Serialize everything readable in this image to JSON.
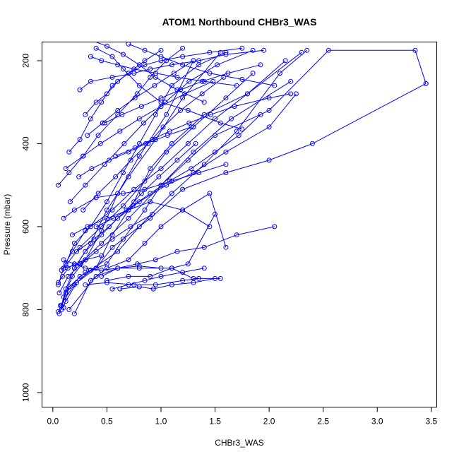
{
  "chart_data": {
    "type": "line",
    "title": "ATOM1 Northbound CHBr3_WAS",
    "xlabel": "CHBr3_WAS",
    "ylabel": "Pressure (mbar)",
    "xlim": [
      -0.1,
      3.55
    ],
    "ylim": [
      1035,
      155
    ],
    "y_axis_inverted": true,
    "grid": false,
    "legend": "none",
    "color": "#0000ff",
    "x_ticks": [
      0.0,
      0.5,
      1.0,
      1.5,
      2.0,
      2.5,
      3.0,
      3.5
    ],
    "x_tick_labels": [
      "0.0",
      "0.5",
      "1.0",
      "1.5",
      "2.0",
      "2.5",
      "3.0",
      "3.5"
    ],
    "y_ticks": [
      200,
      400,
      600,
      800,
      1000
    ],
    "y_tick_labels": [
      "200",
      "400",
      "600",
      "800",
      "1000"
    ],
    "series": [
      {
        "x": [
          0.05,
          0.08,
          0.12,
          0.2,
          0.35,
          0.5,
          0.7,
          0.95,
          1.2,
          1.55
        ],
        "y": [
          805,
          790,
          750,
          700,
          640,
          560,
          480,
          390,
          290,
          180
        ]
      },
      {
        "x": [
          0.08,
          0.1,
          0.18,
          0.3,
          0.45,
          0.6,
          0.8,
          1.05,
          1.3
        ],
        "y": [
          800,
          770,
          720,
          680,
          610,
          520,
          430,
          330,
          200
        ]
      },
      {
        "x": [
          0.06,
          0.12,
          0.25,
          0.4,
          0.55,
          0.75,
          0.9,
          1.1,
          1.4,
          1.8,
          2.3
        ],
        "y": [
          810,
          760,
          720,
          700,
          620,
          540,
          460,
          400,
          330,
          280,
          180
        ]
      },
      {
        "x": [
          0.1,
          0.15,
          0.3,
          0.5,
          0.65,
          0.85,
          1.0,
          1.25,
          1.5,
          2.0,
          2.55,
          3.35,
          3.45
        ],
        "y": [
          795,
          745,
          710,
          690,
          630,
          560,
          500,
          440,
          380,
          320,
          175,
          175,
          255
        ]
      },
      {
        "x": [
          0.07,
          0.2,
          0.35,
          0.6,
          0.8,
          1.1,
          1.4,
          1.7,
          2.1,
          2.35
        ],
        "y": [
          790,
          740,
          705,
          660,
          600,
          520,
          450,
          370,
          230,
          175
        ]
      },
      {
        "x": [
          0.12,
          0.22,
          0.4,
          0.55,
          0.9,
          1.2,
          1.6,
          2.0,
          2.4,
          3.45
        ],
        "y": [
          780,
          735,
          700,
          650,
          580,
          510,
          470,
          440,
          400,
          255
        ]
      },
      {
        "x": [
          0.05,
          0.1,
          0.25,
          0.45,
          0.7,
          1.0,
          1.3,
          1.65,
          2.2
        ],
        "y": [
          740,
          700,
          690,
          640,
          580,
          500,
          420,
          340,
          250
        ]
      },
      {
        "x": [
          0.2,
          0.35,
          0.5,
          0.7,
          0.85,
          1.0,
          1.2,
          1.45,
          1.6
        ],
        "y": [
          810,
          730,
          700,
          680,
          640,
          600,
          560,
          520,
          650
        ]
      },
      {
        "x": [
          0.15,
          0.4,
          0.6,
          0.8,
          1.1,
          1.3,
          1.55
        ],
        "y": [
          800,
          720,
          700,
          700,
          700,
          725,
          725
        ]
      },
      {
        "x": [
          0.3,
          0.5,
          0.75,
          0.95,
          1.2,
          1.35
        ],
        "y": [
          740,
          735,
          740,
          740,
          730,
          725
        ]
      },
      {
        "x": [
          0.5,
          0.7,
          0.9,
          1.1,
          1.25,
          1.5
        ],
        "y": [
          730,
          720,
          720,
          700,
          690,
          570
        ]
      },
      {
        "x": [
          0.1,
          0.25,
          0.45,
          0.65,
          0.85,
          1.05,
          1.3,
          1.6,
          1.85
        ],
        "y": [
          700,
          650,
          600,
          550,
          490,
          420,
          360,
          290,
          230
        ]
      },
      {
        "x": [
          0.08,
          0.18,
          0.3,
          0.55,
          0.75,
          1.0,
          1.25,
          1.5,
          1.8,
          2.15
        ],
        "y": [
          705,
          660,
          610,
          560,
          510,
          460,
          400,
          340,
          280,
          200
        ]
      },
      {
        "x": [
          0.12,
          0.2,
          0.35,
          0.5,
          0.65,
          0.8,
          0.95,
          1.1,
          1.35,
          1.6
        ],
        "y": [
          690,
          640,
          600,
          540,
          470,
          400,
          330,
          260,
          210,
          180
        ]
      },
      {
        "x": [
          0.05,
          0.15,
          0.28,
          0.42,
          0.6,
          0.78,
          0.9,
          1.05,
          1.2
        ],
        "y": [
          500,
          470,
          430,
          380,
          330,
          280,
          240,
          200,
          170
        ]
      },
      {
        "x": [
          0.15,
          0.25,
          0.35,
          0.45,
          0.55,
          0.7,
          0.85,
          1.0
        ],
        "y": [
          420,
          390,
          340,
          300,
          260,
          230,
          200,
          175
        ]
      },
      {
        "x": [
          0.3,
          0.4,
          0.5,
          0.6,
          0.7,
          0.85,
          1.0,
          1.2,
          1.45,
          1.75
        ],
        "y": [
          330,
          300,
          280,
          250,
          230,
          210,
          200,
          190,
          180,
          170
        ]
      },
      {
        "x": [
          0.25,
          0.35,
          0.55,
          0.75,
          0.9,
          1.1,
          1.35,
          1.6,
          1.95
        ],
        "y": [
          270,
          250,
          240,
          230,
          220,
          210,
          200,
          185,
          175
        ]
      },
      {
        "x": [
          0.35,
          0.45,
          0.6,
          0.75,
          0.95,
          1.15,
          1.4,
          1.7
        ],
        "y": [
          190,
          200,
          210,
          220,
          230,
          240,
          250,
          260
        ]
      },
      {
        "x": [
          0.4,
          0.55,
          0.65,
          0.8,
          1.0,
          1.25,
          1.55,
          1.75
        ],
        "y": [
          170,
          190,
          220,
          260,
          300,
          320,
          350,
          365
        ]
      },
      {
        "x": [
          0.2,
          0.3,
          0.45,
          0.6,
          0.8,
          1.05,
          1.3,
          1.6,
          2.0,
          2.25
        ],
        "y": [
          700,
          660,
          620,
          580,
          540,
          500,
          470,
          420,
          360,
          280
        ]
      },
      {
        "x": [
          0.1,
          0.2,
          0.4,
          0.65,
          0.85,
          1.1,
          1.35,
          1.6
        ],
        "y": [
          580,
          560,
          530,
          520,
          510,
          490,
          470,
          450
        ]
      },
      {
        "x": [
          0.18,
          0.32,
          0.5,
          0.7,
          0.9,
          1.2,
          1.45
        ],
        "y": [
          620,
          600,
          580,
          560,
          540,
          560,
          600
        ]
      },
      {
        "x": [
          0.06,
          0.14,
          0.26,
          0.4,
          0.55,
          0.72,
          0.92
        ],
        "y": [
          760,
          720,
          690,
          660,
          630,
          600,
          570
        ]
      },
      {
        "x": [
          0.22,
          0.38,
          0.52,
          0.68,
          0.82,
          0.98,
          1.15,
          1.32
        ],
        "y": [
          660,
          630,
          600,
          560,
          520,
          480,
          440,
          400
        ]
      },
      {
        "x": [
          0.28,
          0.42,
          0.58,
          0.72,
          0.88,
          1.02,
          1.18,
          1.38,
          1.58
        ],
        "y": [
          560,
          520,
          480,
          440,
          400,
          360,
          320,
          280,
          240
        ]
      },
      {
        "x": [
          0.12,
          0.28,
          0.44,
          0.62,
          0.8,
          1.0,
          1.22,
          1.48
        ],
        "y": [
          460,
          430,
          400,
          370,
          340,
          310,
          280,
          250
        ]
      },
      {
        "x": [
          0.32,
          0.46,
          0.6,
          0.76,
          0.94,
          1.12,
          1.3
        ],
        "y": [
          380,
          350,
          320,
          290,
          260,
          230,
          200
        ]
      },
      {
        "x": [
          0.16,
          0.3,
          0.48,
          0.66,
          0.84,
          1.04,
          1.26,
          1.52,
          1.85
        ],
        "y": [
          540,
          500,
          450,
          400,
          350,
          300,
          250,
          210,
          175
        ]
      },
      {
        "x": [
          0.45,
          0.6,
          0.78,
          0.95,
          1.15,
          1.4,
          1.7,
          2.05
        ],
        "y": [
          720,
          700,
          690,
          680,
          660,
          650,
          620,
          600
        ]
      },
      {
        "x": [
          0.55,
          0.7,
          0.85,
          1.0,
          1.2,
          1.4
        ],
        "y": [
          750,
          740,
          730,
          720,
          710,
          700
        ]
      },
      {
        "x": [
          0.62,
          0.8,
          0.93,
          1.1,
          1.3,
          1.5
        ],
        "y": [
          750,
          745,
          750,
          740,
          735,
          725
        ]
      },
      {
        "x": [
          0.1,
          0.2,
          0.3,
          0.45,
          0.6,
          0.8,
          1.0
        ],
        "y": [
          680,
          690,
          700,
          705,
          700,
          695,
          700
        ]
      },
      {
        "x": [
          0.05,
          0.09,
          0.14,
          0.2,
          0.3,
          0.45
        ],
        "y": [
          735,
          720,
          700,
          690,
          680,
          670
        ]
      },
      {
        "x": [
          0.35,
          0.5,
          0.65,
          0.8,
          0.95,
          1.15,
          1.4
        ],
        "y": [
          150,
          165,
          185,
          210,
          240,
          270,
          300
        ]
      },
      {
        "x": [
          0.7,
          0.85,
          1.0,
          1.2,
          1.45,
          1.75,
          2.05
        ],
        "y": [
          160,
          175,
          190,
          210,
          230,
          245,
          260
        ]
      },
      {
        "x": [
          0.48,
          0.64,
          0.82,
          1.0,
          1.18,
          1.38,
          1.62,
          1.92
        ],
        "y": [
          350,
          330,
          310,
          290,
          270,
          250,
          230,
          210
        ]
      },
      {
        "x": [
          0.24,
          0.36,
          0.52,
          0.7,
          0.86,
          1.06,
          1.28
        ],
        "y": [
          480,
          460,
          440,
          420,
          400,
          380,
          360
        ]
      },
      {
        "x": [
          0.4,
          0.56,
          0.74,
          0.9,
          1.08,
          1.28,
          1.5,
          1.72,
          1.92
        ],
        "y": [
          600,
          580,
          550,
          520,
          490,
          460,
          420,
          380,
          330
        ]
      },
      {
        "x": [
          0.58,
          0.76,
          0.92,
          1.08,
          1.26,
          1.46,
          1.68,
          2.0,
          2.2
        ],
        "y": [
          430,
          410,
          390,
          370,
          350,
          330,
          310,
          290,
          280
        ]
      }
    ]
  }
}
